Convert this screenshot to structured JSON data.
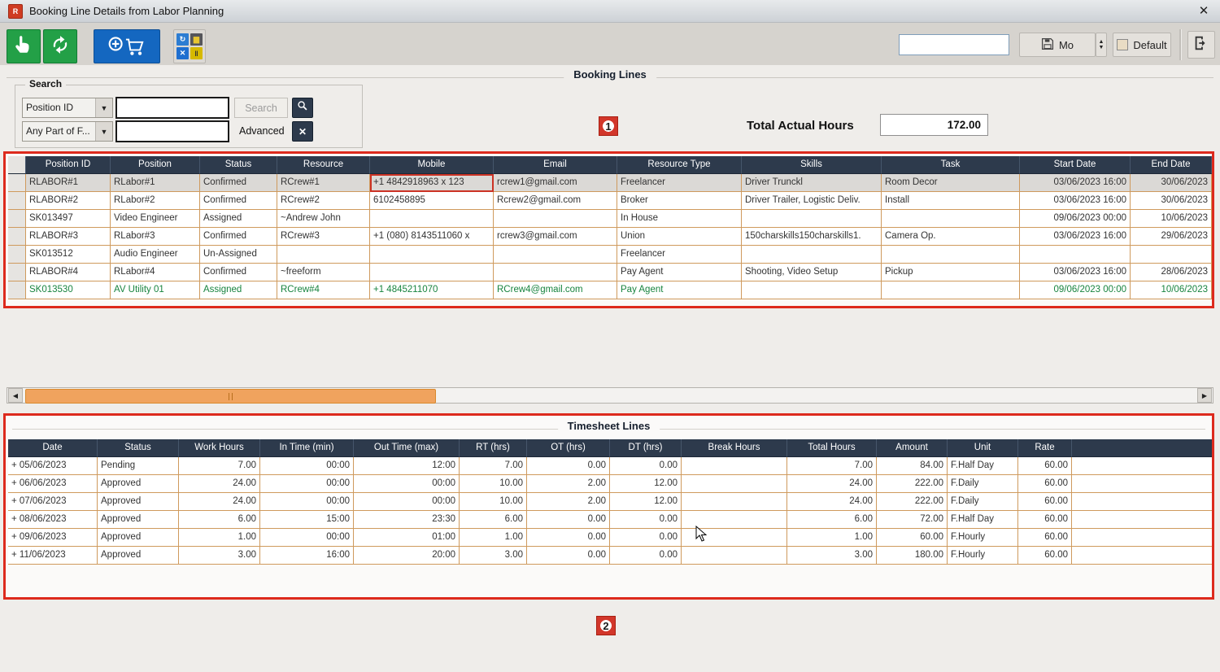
{
  "window": {
    "title": "Booking Line Details from Labor Planning",
    "app_icon": "R",
    "close": "✕"
  },
  "toolbar": {
    "select_icon": "hand-pointer",
    "refresh_icon": "refresh-arrows",
    "add_to_po_cart_icon": "plus-shopping-cart",
    "export_grid_icon": "multi-export-grid",
    "view_dropdown_value": "",
    "save_layout_label": "Mo",
    "default_label": "Default",
    "exit_icon": "exit-door-arrow"
  },
  "search": {
    "group_label": "Search",
    "field1_selector": "Position ID",
    "field2_selector": "Any Part of F...",
    "input1_value": "",
    "input2_value": "",
    "search_button_label": "Search",
    "advanced_label": "Advanced",
    "magnifier_icon": "search-icon",
    "clear_icon": "x-icon"
  },
  "booking_section": {
    "title": "Booking Lines",
    "total_label": "Total Actual Hours",
    "total_value": "172.00"
  },
  "annotations": {
    "marker1": "1",
    "marker2": "2"
  },
  "booking_table": {
    "columns": [
      "Position ID",
      "Position",
      "Status",
      "Resource",
      "Mobile",
      "Email",
      "Resource Type",
      "Skills",
      "Task",
      "Start Date",
      "End Date"
    ],
    "rows": [
      {
        "pid": "RLABOR#1",
        "pos": "RLabor#1",
        "status": "Confirmed",
        "res": "RCrew#1",
        "mobile": "+1 4842918963 x 123",
        "email": "rcrew1@gmail.com",
        "rtype": "Freelancer",
        "skills": "Driver Trunckl",
        "task": "Room Decor",
        "start": "03/06/2023 16:00",
        "end": "30/06/2023",
        "selected": true,
        "mobile_box": true
      },
      {
        "pid": "RLABOR#2",
        "pos": "RLabor#2",
        "status": "Confirmed",
        "res": "RCrew#2",
        "mobile": "6102458895",
        "email": "Rcrew2@gmail.com",
        "rtype": "Broker",
        "skills": "Driver Trailer, Logistic Deliv.",
        "task": "Install",
        "start": "03/06/2023 16:00",
        "end": "30/06/2023"
      },
      {
        "pid": "SK013497",
        "pos": "Video Engineer",
        "status": "Assigned",
        "res": "~Andrew John",
        "mobile": "",
        "email": "",
        "rtype": "In House",
        "skills": "",
        "task": "",
        "start": "09/06/2023 00:00",
        "end": "10/06/2023"
      },
      {
        "pid": "RLABOR#3",
        "pos": "RLabor#3",
        "status": "Confirmed",
        "res": "RCrew#3",
        "mobile": "+1 (080) 8143511060 x",
        "email": "rcrew3@gmail.com",
        "rtype": "Union",
        "skills": "150charskills150charskills1.",
        "task": "Camera Op.",
        "start": "03/06/2023 16:00",
        "end": "29/06/2023"
      },
      {
        "pid": "SK013512",
        "pos": "Audio Engineer",
        "status": "Un-Assigned",
        "res": "",
        "mobile": "",
        "email": "",
        "rtype": "Freelancer",
        "skills": "",
        "task": "",
        "start": "",
        "end": ""
      },
      {
        "pid": "RLABOR#4",
        "pos": "RLabor#4",
        "status": "Confirmed",
        "res": "~freeform",
        "mobile": "",
        "email": "",
        "rtype": "Pay Agent",
        "skills": "Shooting, Video Setup",
        "task": "Pickup",
        "start": "03/06/2023 16:00",
        "end": "28/06/2023"
      },
      {
        "pid": "SK013530",
        "pos": "AV Utility 01",
        "status": "Assigned",
        "res": "RCrew#4",
        "mobile": "+1 4845211070",
        "email": "RCrew4@gmail.com",
        "rtype": "Pay Agent",
        "skills": "",
        "task": "",
        "start": "09/06/2023 00:00",
        "end": "10/06/2023",
        "green": true
      }
    ]
  },
  "timesheet_section": {
    "title": "Timesheet Lines"
  },
  "timesheet_table": {
    "columns": [
      "Date",
      "Status",
      "Work Hours",
      "In Time (min)",
      "Out Time (max)",
      "RT (hrs)",
      "OT (hrs)",
      "DT (hrs)",
      "Break Hours",
      "Total Hours",
      "Amount",
      "Unit",
      "Rate"
    ],
    "rows": [
      {
        "date": "+ 05/06/2023",
        "status": "Pending",
        "work": "7.00",
        "in_time": "00:00",
        "out_time": "12:00",
        "rt": "7.00",
        "ot": "0.00",
        "dt": "0.00",
        "brk": "",
        "total": "7.00",
        "amount": "84.00",
        "unit": "F.Half Day",
        "rate": "60.00"
      },
      {
        "date": "+ 06/06/2023",
        "status": "Approved",
        "work": "24.00",
        "in_time": "00:00",
        "out_time": "00:00",
        "rt": "10.00",
        "ot": "2.00",
        "dt": "12.00",
        "brk": "",
        "total": "24.00",
        "amount": "222.00",
        "unit": "F.Daily",
        "rate": "60.00"
      },
      {
        "date": "+ 07/06/2023",
        "status": "Approved",
        "work": "24.00",
        "in_time": "00:00",
        "out_time": "00:00",
        "rt": "10.00",
        "ot": "2.00",
        "dt": "12.00",
        "brk": "",
        "total": "24.00",
        "amount": "222.00",
        "unit": "F.Daily",
        "rate": "60.00"
      },
      {
        "date": "+ 08/06/2023",
        "status": "Approved",
        "work": "6.00",
        "in_time": "15:00",
        "out_time": "23:30",
        "rt": "6.00",
        "ot": "0.00",
        "dt": "0.00",
        "brk": "",
        "total": "6.00",
        "amount": "72.00",
        "unit": "F.Half Day",
        "rate": "60.00"
      },
      {
        "date": "+ 09/06/2023",
        "status": "Approved",
        "work": "1.00",
        "in_time": "00:00",
        "out_time": "01:00",
        "rt": "1.00",
        "ot": "0.00",
        "dt": "0.00",
        "brk": "",
        "total": "1.00",
        "amount": "60.00",
        "unit": "F.Hourly",
        "rate": "60.00"
      },
      {
        "date": "+ 11/06/2023",
        "status": "Approved",
        "work": "3.00",
        "in_time": "16:00",
        "out_time": "20:00",
        "rt": "3.00",
        "ot": "0.00",
        "dt": "0.00",
        "brk": "",
        "total": "3.00",
        "amount": "180.00",
        "unit": "F.Hourly",
        "rate": "60.00"
      }
    ]
  },
  "colors": {
    "annotation_red": "#dd2a1d",
    "grid_header_navy": "#2d3a4c",
    "toolbar_green": "#23a047",
    "toolbar_blue": "#1467c0",
    "green_row_text": "#18843f",
    "scrollbar_thumb_orange": "#f0a35e",
    "grid_line_tan": "#cf9a5d"
  }
}
